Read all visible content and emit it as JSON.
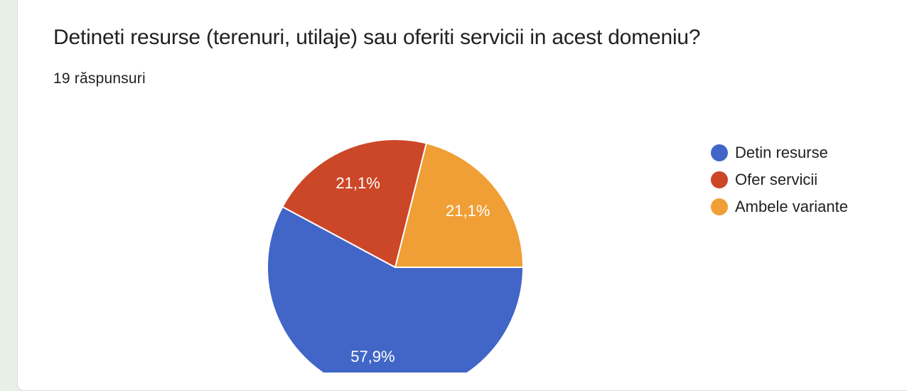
{
  "question": {
    "title": "Detineti resurse (terenuri, utilaje) sau oferiti servicii in acest domeniu?",
    "responses": "19 răspunsuri"
  },
  "chart_data": {
    "type": "pie",
    "categories": [
      "Detin resurse",
      "Ofer servicii",
      "Ambele variante"
    ],
    "values": [
      57.9,
      21.1,
      21.1
    ],
    "labels": [
      "57,9%",
      "21,1%",
      "21,1%"
    ],
    "colors": [
      "#4166c7",
      "#cc4727",
      "#f09f36"
    ],
    "legend": "right"
  }
}
